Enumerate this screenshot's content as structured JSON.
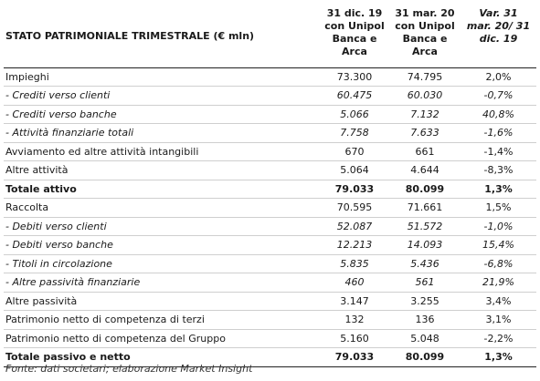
{
  "header": {
    "title": "STATO PATRIMONIALE TRIMESTRALE (€ mln)",
    "col1": [
      "31 dic. 19",
      "con Unipol",
      "Banca e",
      "Arca"
    ],
    "col2": [
      "31 mar. 20",
      "con Unipol",
      "Banca e",
      "Arca"
    ],
    "col3": [
      "Var. 31",
      "mar. 20/ 31",
      "dic. 19"
    ]
  },
  "rows": [
    {
      "label": "Impieghi",
      "v1": "73.300",
      "v2": "74.795",
      "v3": "2,0%"
    },
    {
      "label": "- Crediti verso clienti",
      "v1": "60.475",
      "v2": "60.030",
      "v3": "-0,7%"
    },
    {
      "label": "- Crediti verso banche",
      "v1": "5.066",
      "v2": "7.132",
      "v3": "40,8%"
    },
    {
      "label": "- Attività finanziarie totali",
      "v1": "7.758",
      "v2": "7.633",
      "v3": "-1,6%"
    },
    {
      "label": "Avviamento ed altre attività intangibili",
      "v1": "670",
      "v2": "661",
      "v3": "-1,4%"
    },
    {
      "label": "Altre attività",
      "v1": "5.064",
      "v2": "4.644",
      "v3": "-8,3%"
    },
    {
      "label": "Totale attivo",
      "v1": "79.033",
      "v2": "80.099",
      "v3": "1,3%"
    },
    {
      "label": "Raccolta",
      "v1": "70.595",
      "v2": "71.661",
      "v3": "1,5%"
    },
    {
      "label": "- Debiti verso clienti",
      "v1": "52.087",
      "v2": "51.572",
      "v3": "-1,0%"
    },
    {
      "label": "- Debiti verso banche",
      "v1": "12.213",
      "v2": "14.093",
      "v3": "15,4%"
    },
    {
      "label": "- Titoli in circolazione",
      "v1": "5.835",
      "v2": "5.436",
      "v3": "-6,8%"
    },
    {
      "label": "- Altre passività finanziarie",
      "v1": "460",
      "v2": "561",
      "v3": "21,9%"
    },
    {
      "label": "Altre passività",
      "v1": "3.147",
      "v2": "3.255",
      "v3": "3,4%"
    },
    {
      "label": "Patrimonio netto di competenza di terzi",
      "v1": "132",
      "v2": "136",
      "v3": "3,1%"
    },
    {
      "label": "Patrimonio netto di competenza del Gruppo",
      "v1": "5.160",
      "v2": "5.048",
      "v3": "-2,2%"
    },
    {
      "label": "Totale passivo e netto",
      "v1": "79.033",
      "v2": "80.099",
      "v3": "1,3%"
    }
  ],
  "source": "Fonte: dati societari; elaborazione Market Insight"
}
